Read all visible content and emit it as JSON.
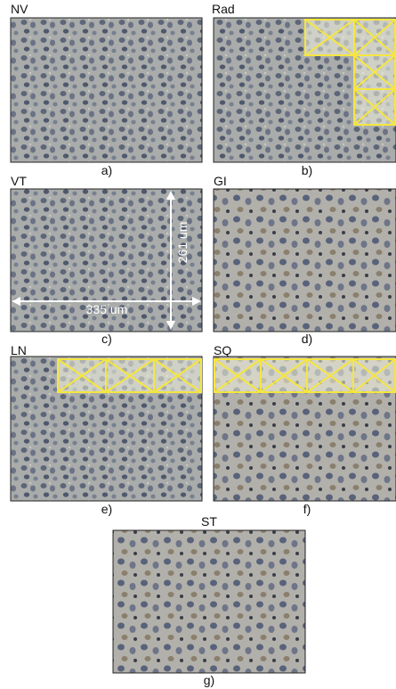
{
  "panels": [
    {
      "label": "NV",
      "caption": "a)"
    },
    {
      "label": "Rad",
      "caption": "b)"
    },
    {
      "label": "VT",
      "caption": "c)"
    },
    {
      "label": "GI",
      "caption": "d)"
    },
    {
      "label": "LN",
      "caption": "e)"
    },
    {
      "label": "SQ",
      "caption": "f)"
    },
    {
      "label": "ST",
      "caption": "g)"
    }
  ],
  "scale": {
    "height": "261 um",
    "width": "335 um"
  }
}
